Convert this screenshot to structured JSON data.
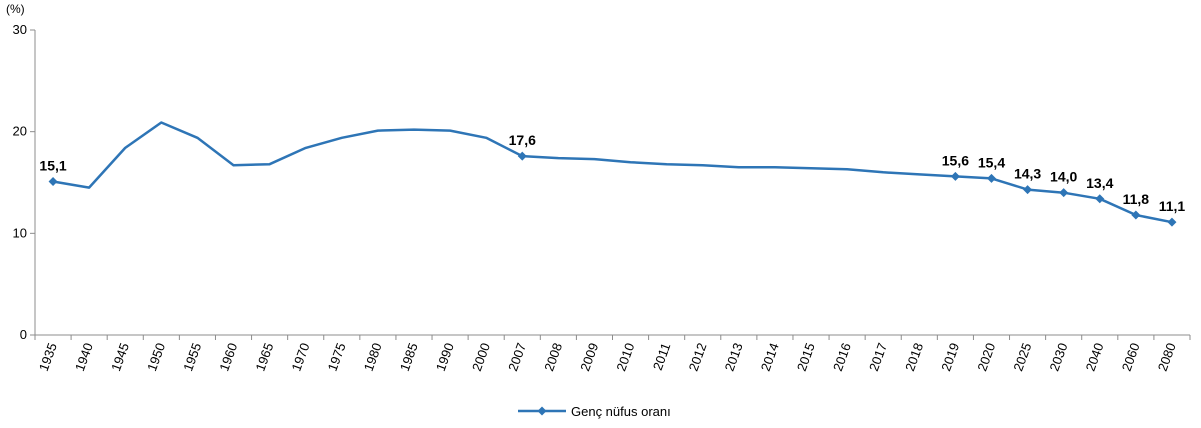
{
  "chart_data": {
    "type": "line",
    "unit_label": "(%)",
    "ylim": [
      0,
      30
    ],
    "yticks": [
      0,
      10,
      20,
      30
    ],
    "grid": false,
    "legend_position": "bottom-left",
    "categories": [
      "1935",
      "1940",
      "1945",
      "1950",
      "1955",
      "1960",
      "1965",
      "1970",
      "1975",
      "1980",
      "1985",
      "1990",
      "2000",
      "2007",
      "2008",
      "2009",
      "2010",
      "2011",
      "2012",
      "2013",
      "2014",
      "2015",
      "2016",
      "2017",
      "2018",
      "2019",
      "2020",
      "2025",
      "2030",
      "2040",
      "2060",
      "2080"
    ],
    "series": [
      {
        "name": "Genç nüfus oranı",
        "color": "#2E75B6",
        "values": [
          15.1,
          14.5,
          18.4,
          20.9,
          19.4,
          16.7,
          16.8,
          18.4,
          19.4,
          20.1,
          20.2,
          20.1,
          19.4,
          17.6,
          17.4,
          17.3,
          17.0,
          16.8,
          16.7,
          16.5,
          16.5,
          16.4,
          16.3,
          16.0,
          15.8,
          15.6,
          15.4,
          14.3,
          14.0,
          13.4,
          11.8,
          11.1
        ],
        "markers": [
          "1935",
          "2007",
          "2019",
          "2020",
          "2025",
          "2030",
          "2040",
          "2060",
          "2080"
        ],
        "data_labels": {
          "1935": "15,1",
          "2007": "17,6",
          "2019": "15,6",
          "2020": "15,4",
          "2025": "14,3",
          "2030": "14,0",
          "2040": "13,4",
          "2060": "11,8",
          "2080": "11,1"
        }
      }
    ]
  }
}
